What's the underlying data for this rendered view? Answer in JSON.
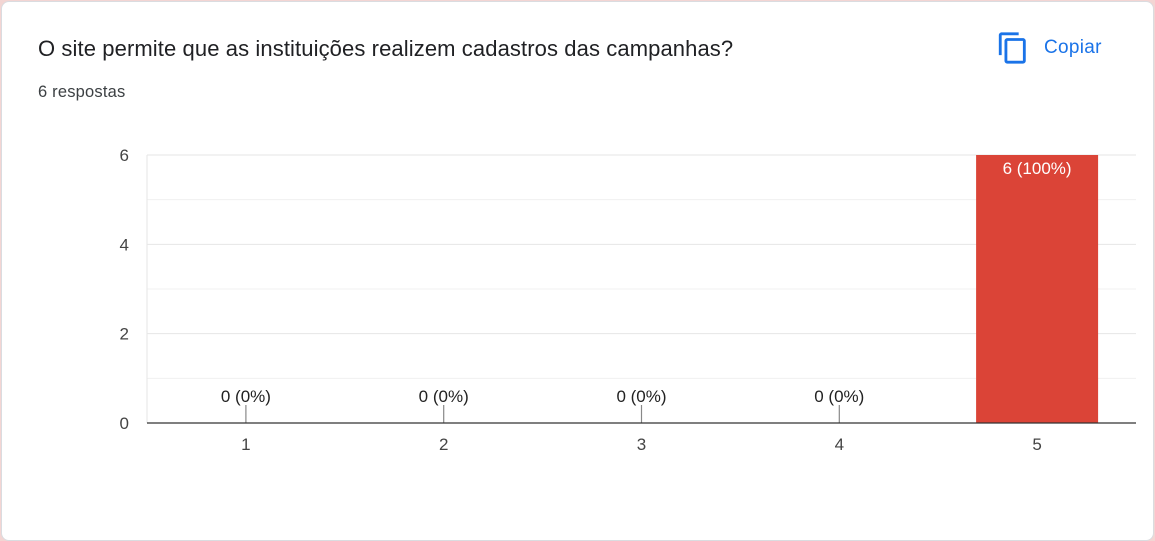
{
  "card": {
    "title": "O site permite que as instituições realizem cadastros das campanhas?",
    "subtitle": "6 respostas",
    "copy_label": "Copiar",
    "copy_icon": "copy-icon",
    "accent_color": "#1a73e8"
  },
  "chart_data": {
    "type": "bar",
    "categories": [
      "1",
      "2",
      "3",
      "4",
      "5"
    ],
    "values": [
      0,
      0,
      0,
      0,
      6
    ],
    "data_labels": [
      "0 (0%)",
      "0 (0%)",
      "0 (0%)",
      "0 (0%)",
      "6 (100%)"
    ],
    "ylim": [
      0,
      6
    ],
    "yticks": [
      "0",
      "2",
      "4",
      "6"
    ],
    "grid": true,
    "bar_color": "#db4437"
  }
}
